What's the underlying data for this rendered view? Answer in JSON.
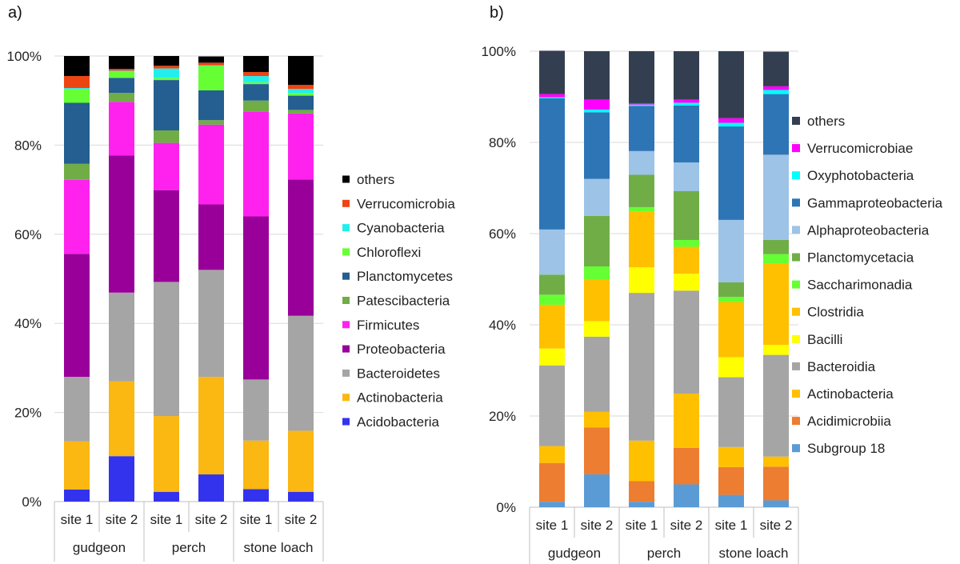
{
  "chart_data": [
    {
      "type": "bar",
      "stacked": "100%",
      "panel_label": "a)",
      "y_ticks": [
        "0%",
        "20%",
        "40%",
        "60%",
        "80%",
        "100%"
      ],
      "ylim": [
        0,
        100
      ],
      "grid": true,
      "legend_position": "right",
      "categories": [
        "site 1",
        "site 2",
        "site 1",
        "site 2",
        "site 1",
        "site 2"
      ],
      "groups": [
        {
          "label": "gudgeon",
          "size": 2
        },
        {
          "label": "perch",
          "size": 2
        },
        {
          "label": "stone loach",
          "size": 2
        }
      ],
      "series": [
        {
          "name": "Acidobacteria",
          "color": "#3333ee",
          "values": [
            2.7,
            10.2,
            2.2,
            6.1,
            2.8,
            2.2
          ]
        },
        {
          "name": "Actinobacteria",
          "color": "#fbb712",
          "values": [
            10.8,
            16.8,
            17.0,
            21.9,
            10.9,
            13.7
          ]
        },
        {
          "name": "Bacteroidetes",
          "color": "#a5a5a5",
          "values": [
            14.5,
            19.9,
            30.1,
            24.0,
            13.7,
            25.8
          ]
        },
        {
          "name": "Proteobacteria",
          "color": "#990099",
          "values": [
            27.6,
            30.8,
            20.6,
            14.7,
            36.6,
            30.6
          ]
        },
        {
          "name": "Firmicutes",
          "color": "#ff22ee",
          "values": [
            16.6,
            12.0,
            10.6,
            17.9,
            23.5,
            14.8
          ]
        },
        {
          "name": "Patescibacteria",
          "color": "#70ad47",
          "values": [
            3.6,
            2.0,
            2.8,
            1.0,
            2.5,
            0.8
          ]
        },
        {
          "name": "Planctomycetes",
          "color": "#255e91",
          "values": [
            13.7,
            3.4,
            11.3,
            6.7,
            3.7,
            3.2
          ]
        },
        {
          "name": "Chloroflexi",
          "color": "#66ff33",
          "values": [
            3.0,
            1.5,
            0.5,
            5.5,
            0.4,
            0.6
          ]
        },
        {
          "name": "Cyanobacteria",
          "color": "#22eeee",
          "values": [
            0.3,
            0.1,
            2.1,
            0.1,
            1.4,
            0.9
          ]
        },
        {
          "name": "Verrucomicrobia",
          "color": "#ee4411",
          "values": [
            2.7,
            0.4,
            0.6,
            0.6,
            0.9,
            0.9
          ]
        },
        {
          "name": "others",
          "color": "#000000",
          "values": [
            4.5,
            2.9,
            2.2,
            1.4,
            3.6,
            6.5
          ]
        }
      ]
    },
    {
      "type": "bar",
      "stacked": "100%",
      "panel_label": "b)",
      "y_ticks": [
        "0%",
        "20%",
        "40%",
        "60%",
        "80%",
        "100%"
      ],
      "ylim": [
        0,
        100
      ],
      "grid": true,
      "legend_position": "right",
      "categories": [
        "site 1",
        "site 2",
        "site 1",
        "site 2",
        "site 1",
        "site 2"
      ],
      "groups": [
        {
          "label": "gudgeon",
          "size": 2
        },
        {
          "label": "perch",
          "size": 2
        },
        {
          "label": "stone loach",
          "size": 2
        }
      ],
      "series": [
        {
          "name": "Subgroup 18",
          "color": "#5b9bd5",
          "values": [
            1.2,
            7.2,
            1.2,
            5.0,
            2.7,
            1.5
          ]
        },
        {
          "name": "Acidimicrobiia",
          "color": "#ed7d31",
          "values": [
            8.5,
            10.3,
            4.5,
            8.0,
            6.1,
            7.4
          ]
        },
        {
          "name": "Actinobacteria",
          "color": "#ffc000",
          "values": [
            3.7,
            3.4,
            8.9,
            11.9,
            4.4,
            2.2
          ]
        },
        {
          "name": "Bacteroidia",
          "color": "#a5a5a5",
          "values": [
            17.7,
            16.5,
            32.4,
            22.6,
            15.3,
            22.3
          ]
        },
        {
          "name": "Bacilli",
          "color": "#ffff00",
          "values": [
            3.7,
            3.4,
            5.6,
            3.7,
            4.4,
            2.2
          ]
        },
        {
          "name": "Clostridia",
          "color": "#ffc000",
          "values": [
            9.6,
            9.2,
            12.2,
            5.9,
            12.1,
            17.9
          ]
        },
        {
          "name": "Saccharimonadia",
          "color": "#66ff33",
          "values": [
            2.2,
            2.8,
            1.0,
            1.5,
            1.1,
            2.0
          ]
        },
        {
          "name": "Planctomycetacia",
          "color": "#70ad47",
          "values": [
            4.4,
            11.1,
            7.1,
            10.7,
            3.2,
            3.1
          ]
        },
        {
          "name": "Alphaproteobacteria",
          "color": "#9dc3e6",
          "values": [
            9.9,
            8.1,
            5.2,
            6.3,
            13.7,
            18.7
          ]
        },
        {
          "name": "Gammaproteobacteria",
          "color": "#2e75b6",
          "values": [
            28.8,
            14.6,
            9.9,
            12.5,
            20.5,
            13.3
          ]
        },
        {
          "name": "Oxyphotobacteria",
          "color": "#00ffff",
          "values": [
            0.2,
            0.6,
            0.3,
            0.6,
            0.8,
            0.9
          ]
        },
        {
          "name": "Verrucomicrobiae",
          "color": "#ff00ff",
          "values": [
            0.7,
            2.2,
            0.3,
            0.7,
            1.0,
            0.8
          ]
        },
        {
          "name": "others",
          "color": "#333f50",
          "values": [
            9.5,
            10.6,
            11.4,
            10.6,
            14.7,
            7.6
          ]
        }
      ]
    }
  ]
}
